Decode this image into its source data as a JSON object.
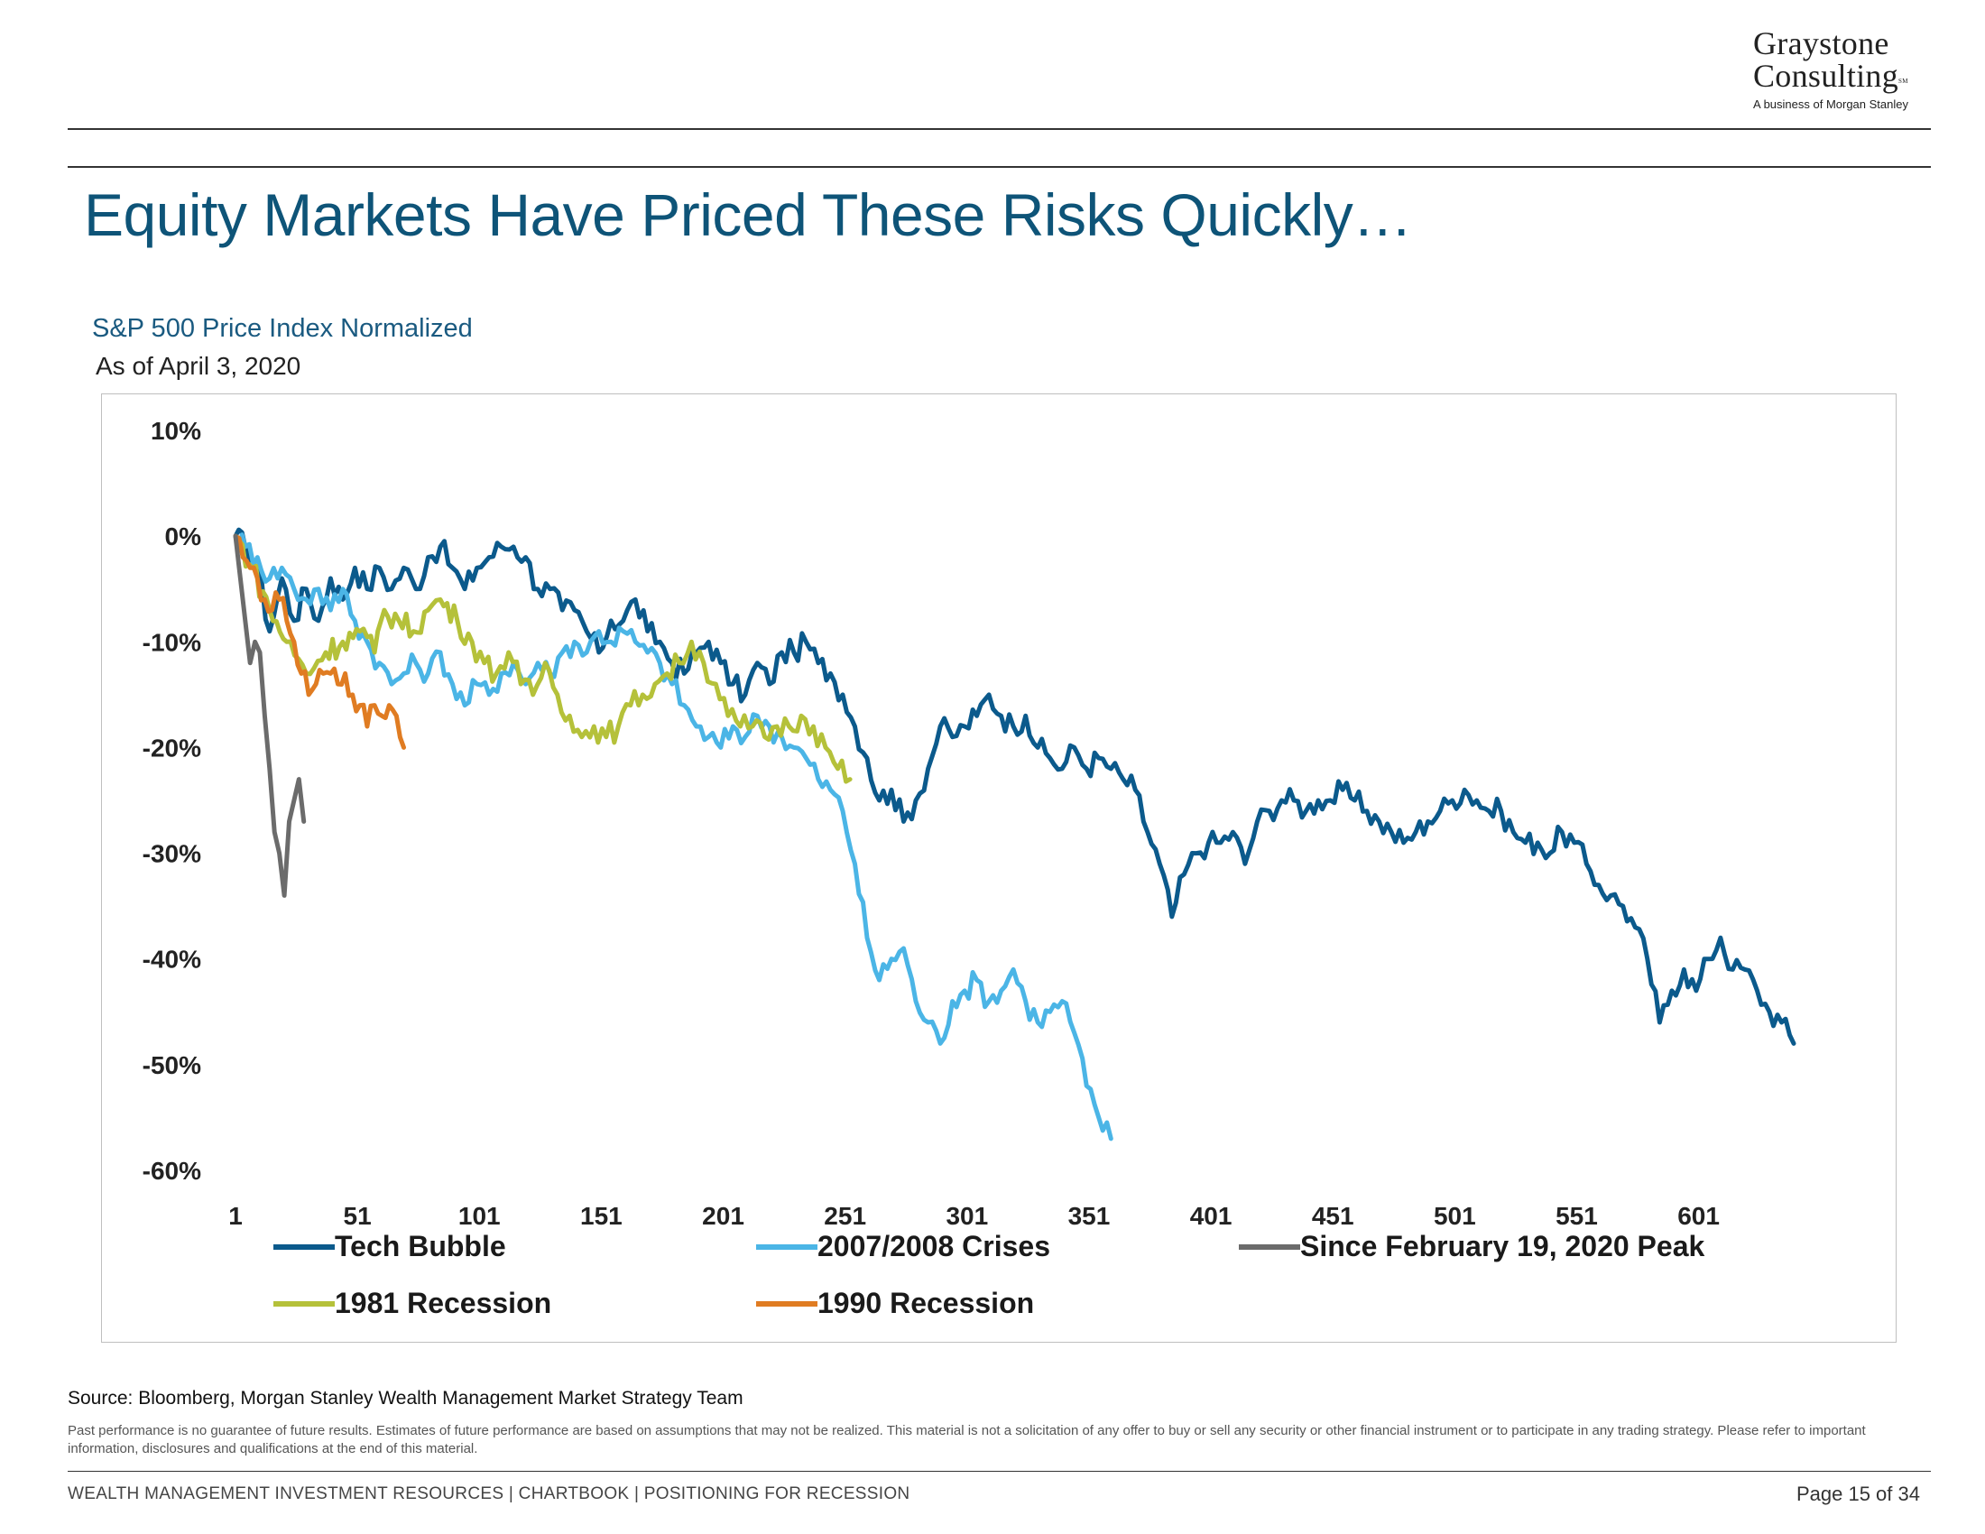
{
  "logo": {
    "line1": "Graystone",
    "line2": "Consulting",
    "mark": "SM",
    "line3": "A business of Morgan Stanley"
  },
  "title": "Equity Markets Have Priced These Risks Quickly…",
  "subtitle": "S&P 500 Price Index Normalized",
  "as_of": "As of April 3, 2020",
  "source": "Source:  Bloomberg, Morgan Stanley Wealth Management Market Strategy Team",
  "disclaimer": "Past performance is no guarantee of future results. Estimates of future performance are based on assumptions that may not be realized. This material is not a solicitation of any offer to buy or sell any security or other financial instrument or to participate in any trading strategy. Please refer to important information, disclosures and qualifications at the end of this material.",
  "footer": {
    "left": "WEALTH MANAGEMENT INVESTMENT RESOURCES  |  CHARTBOOK  |  POSITIONING FOR RECESSION",
    "page": "Page 15 of 34"
  },
  "colors": {
    "title": "#0e5478",
    "tech": "#0b5a8c",
    "crisis": "#4bb5e6",
    "covid": "#6b6b6b",
    "r1981": "#b5c13a",
    "r1990": "#e07c22"
  },
  "chart_data": {
    "type": "line",
    "x_ticks": [
      "1",
      "51",
      "101",
      "151",
      "201",
      "251",
      "301",
      "351",
      "401",
      "451",
      "501",
      "551",
      "601"
    ],
    "y_ticks": [
      "10%",
      "0%",
      "-10%",
      "-20%",
      "-30%",
      "-40%",
      "-50%",
      "-60%"
    ],
    "xlim": [
      1,
      640
    ],
    "ylim": [
      -60,
      10
    ],
    "legend_position": "bottom",
    "series": [
      {
        "name": "Tech Bubble",
        "color": "#0b5a8c",
        "points": [
          [
            1,
            0
          ],
          [
            5,
            -1
          ],
          [
            10,
            -3
          ],
          [
            15,
            -9
          ],
          [
            20,
            -4
          ],
          [
            25,
            -8
          ],
          [
            30,
            -5
          ],
          [
            35,
            -8
          ],
          [
            40,
            -4
          ],
          [
            45,
            -6
          ],
          [
            50,
            -3
          ],
          [
            55,
            -5
          ],
          [
            60,
            -3
          ],
          [
            65,
            -5
          ],
          [
            70,
            -3
          ],
          [
            75,
            -5
          ],
          [
            80,
            -2
          ],
          [
            85,
            -1
          ],
          [
            90,
            -3
          ],
          [
            95,
            -5
          ],
          [
            100,
            -3
          ],
          [
            105,
            -2
          ],
          [
            110,
            -1
          ],
          [
            115,
            -1
          ],
          [
            120,
            -2
          ],
          [
            125,
            -5
          ],
          [
            130,
            -5
          ],
          [
            135,
            -7
          ],
          [
            140,
            -7
          ],
          [
            145,
            -9
          ],
          [
            150,
            -11
          ],
          [
            155,
            -8
          ],
          [
            160,
            -8
          ],
          [
            165,
            -6
          ],
          [
            170,
            -9
          ],
          [
            175,
            -10
          ],
          [
            180,
            -12
          ],
          [
            185,
            -13
          ],
          [
            190,
            -11
          ],
          [
            195,
            -10
          ],
          [
            200,
            -12
          ],
          [
            205,
            -14
          ],
          [
            210,
            -15
          ],
          [
            215,
            -12
          ],
          [
            220,
            -14
          ],
          [
            225,
            -11
          ],
          [
            230,
            -11
          ],
          [
            235,
            -10
          ],
          [
            240,
            -12
          ],
          [
            245,
            -13
          ],
          [
            250,
            -15
          ],
          [
            255,
            -18
          ],
          [
            260,
            -21
          ],
          [
            265,
            -25
          ],
          [
            270,
            -24
          ],
          [
            275,
            -27
          ],
          [
            280,
            -25
          ],
          [
            285,
            -22
          ],
          [
            290,
            -18
          ],
          [
            295,
            -19
          ],
          [
            300,
            -18
          ],
          [
            305,
            -17
          ],
          [
            310,
            -15
          ],
          [
            315,
            -17
          ],
          [
            320,
            -18
          ],
          [
            325,
            -17
          ],
          [
            330,
            -20
          ],
          [
            335,
            -21
          ],
          [
            340,
            -22
          ],
          [
            345,
            -20
          ],
          [
            350,
            -22
          ],
          [
            355,
            -21
          ],
          [
            360,
            -22
          ],
          [
            365,
            -23
          ],
          [
            370,
            -24
          ],
          [
            375,
            -28
          ],
          [
            380,
            -31
          ],
          [
            385,
            -36
          ],
          [
            390,
            -32
          ],
          [
            395,
            -30
          ],
          [
            400,
            -29
          ],
          [
            405,
            -29
          ],
          [
            410,
            -28
          ],
          [
            415,
            -31
          ],
          [
            420,
            -27
          ],
          [
            425,
            -26
          ],
          [
            430,
            -25
          ],
          [
            435,
            -25
          ],
          [
            440,
            -26
          ],
          [
            445,
            -25
          ],
          [
            450,
            -25
          ],
          [
            455,
            -24
          ],
          [
            460,
            -25
          ],
          [
            465,
            -26
          ],
          [
            470,
            -27
          ],
          [
            475,
            -28
          ],
          [
            480,
            -29
          ],
          [
            485,
            -28
          ],
          [
            490,
            -27
          ],
          [
            495,
            -26
          ],
          [
            500,
            -25
          ],
          [
            505,
            -24
          ],
          [
            510,
            -25
          ],
          [
            515,
            -26
          ],
          [
            520,
            -26
          ],
          [
            525,
            -28
          ],
          [
            530,
            -29
          ],
          [
            535,
            -29
          ],
          [
            540,
            -30
          ],
          [
            545,
            -28
          ],
          [
            550,
            -29
          ],
          [
            555,
            -31
          ],
          [
            560,
            -33
          ],
          [
            565,
            -34
          ],
          [
            570,
            -35
          ],
          [
            575,
            -37
          ],
          [
            580,
            -40
          ],
          [
            585,
            -46
          ],
          [
            590,
            -43
          ],
          [
            595,
            -41
          ],
          [
            600,
            -43
          ],
          [
            605,
            -40
          ],
          [
            610,
            -38
          ],
          [
            615,
            -41
          ],
          [
            620,
            -41
          ],
          [
            625,
            -43
          ],
          [
            630,
            -45
          ],
          [
            635,
            -46
          ],
          [
            640,
            -48
          ]
        ]
      },
      {
        "name": "2007/2008 Crises",
        "color": "#4bb5e6",
        "points": [
          [
            1,
            0
          ],
          [
            5,
            -1
          ],
          [
            10,
            -2
          ],
          [
            15,
            -4
          ],
          [
            20,
            -3
          ],
          [
            25,
            -5
          ],
          [
            30,
            -6
          ],
          [
            35,
            -5
          ],
          [
            40,
            -7
          ],
          [
            45,
            -5
          ],
          [
            50,
            -8
          ],
          [
            55,
            -10
          ],
          [
            60,
            -12
          ],
          [
            65,
            -14
          ],
          [
            70,
            -13
          ],
          [
            75,
            -12
          ],
          [
            80,
            -13
          ],
          [
            85,
            -11
          ],
          [
            90,
            -14
          ],
          [
            95,
            -16
          ],
          [
            100,
            -14
          ],
          [
            105,
            -15
          ],
          [
            110,
            -13
          ],
          [
            115,
            -12
          ],
          [
            120,
            -14
          ],
          [
            125,
            -12
          ],
          [
            130,
            -13
          ],
          [
            135,
            -11
          ],
          [
            140,
            -10
          ],
          [
            145,
            -11
          ],
          [
            150,
            -9
          ],
          [
            155,
            -10
          ],
          [
            160,
            -9
          ],
          [
            165,
            -10
          ],
          [
            170,
            -11
          ],
          [
            175,
            -12
          ],
          [
            180,
            -14
          ],
          [
            185,
            -16
          ],
          [
            190,
            -18
          ],
          [
            195,
            -19
          ],
          [
            200,
            -20
          ],
          [
            205,
            -18
          ],
          [
            210,
            -19
          ],
          [
            215,
            -17
          ],
          [
            220,
            -18
          ],
          [
            225,
            -19
          ],
          [
            230,
            -20
          ],
          [
            235,
            -21
          ],
          [
            240,
            -23
          ],
          [
            245,
            -24
          ],
          [
            250,
            -26
          ],
          [
            255,
            -31
          ],
          [
            260,
            -38
          ],
          [
            265,
            -42
          ],
          [
            270,
            -40
          ],
          [
            275,
            -39
          ],
          [
            280,
            -44
          ],
          [
            285,
            -46
          ],
          [
            290,
            -48
          ],
          [
            295,
            -44
          ],
          [
            300,
            -43
          ],
          [
            305,
            -42
          ],
          [
            310,
            -44
          ],
          [
            315,
            -43
          ],
          [
            320,
            -41
          ],
          [
            325,
            -44
          ],
          [
            330,
            -46
          ],
          [
            335,
            -45
          ],
          [
            340,
            -44
          ],
          [
            345,
            -47
          ],
          [
            350,
            -52
          ],
          [
            355,
            -55
          ],
          [
            360,
            -57
          ]
        ]
      },
      {
        "name": "Since February 19, 2020 Peak",
        "color": "#6b6b6b",
        "points": [
          [
            1,
            0
          ],
          [
            3,
            -4
          ],
          [
            5,
            -8
          ],
          [
            7,
            -12
          ],
          [
            9,
            -10
          ],
          [
            11,
            -11
          ],
          [
            13,
            -17
          ],
          [
            15,
            -22
          ],
          [
            17,
            -28
          ],
          [
            19,
            -30
          ],
          [
            21,
            -34
          ],
          [
            23,
            -27
          ],
          [
            25,
            -25
          ],
          [
            27,
            -23
          ],
          [
            29,
            -27
          ]
        ]
      },
      {
        "name": "1981 Recession",
        "color": "#b5c13a",
        "points": [
          [
            1,
            0
          ],
          [
            8,
            -3
          ],
          [
            15,
            -7
          ],
          [
            22,
            -10
          ],
          [
            30,
            -13
          ],
          [
            38,
            -11
          ],
          [
            45,
            -10
          ],
          [
            52,
            -9
          ],
          [
            58,
            -11
          ],
          [
            62,
            -7
          ],
          [
            68,
            -8
          ],
          [
            74,
            -9
          ],
          [
            80,
            -7
          ],
          [
            85,
            -6
          ],
          [
            92,
            -8
          ],
          [
            98,
            -10
          ],
          [
            103,
            -12
          ],
          [
            108,
            -13
          ],
          [
            113,
            -11
          ],
          [
            118,
            -14
          ],
          [
            123,
            -15
          ],
          [
            128,
            -12
          ],
          [
            133,
            -15
          ],
          [
            138,
            -17
          ],
          [
            143,
            -19
          ],
          [
            148,
            -18
          ],
          [
            153,
            -19
          ],
          [
            158,
            -18
          ],
          [
            163,
            -16
          ],
          [
            168,
            -15
          ],
          [
            173,
            -14
          ],
          [
            178,
            -13
          ],
          [
            183,
            -12
          ],
          [
            188,
            -10
          ],
          [
            193,
            -12
          ],
          [
            198,
            -14
          ],
          [
            203,
            -17
          ],
          [
            208,
            -18
          ],
          [
            213,
            -18
          ],
          [
            218,
            -19
          ],
          [
            223,
            -18
          ],
          [
            228,
            -18
          ],
          [
            233,
            -17
          ],
          [
            238,
            -18
          ],
          [
            243,
            -20
          ],
          [
            248,
            -22
          ],
          [
            253,
            -23
          ]
        ]
      },
      {
        "name": "1990 Recession",
        "color": "#e07c22",
        "points": [
          [
            1,
            0
          ],
          [
            4,
            -2
          ],
          [
            7,
            -3
          ],
          [
            10,
            -4
          ],
          [
            13,
            -6
          ],
          [
            16,
            -7
          ],
          [
            19,
            -6
          ],
          [
            22,
            -8
          ],
          [
            25,
            -10
          ],
          [
            28,
            -13
          ],
          [
            31,
            -15
          ],
          [
            34,
            -14
          ],
          [
            37,
            -13
          ],
          [
            40,
            -13
          ],
          [
            43,
            -14
          ],
          [
            46,
            -13
          ],
          [
            49,
            -15
          ],
          [
            52,
            -16
          ],
          [
            55,
            -18
          ],
          [
            58,
            -16
          ],
          [
            61,
            -17
          ],
          [
            64,
            -16
          ],
          [
            67,
            -17
          ],
          [
            70,
            -20
          ]
        ]
      }
    ]
  }
}
